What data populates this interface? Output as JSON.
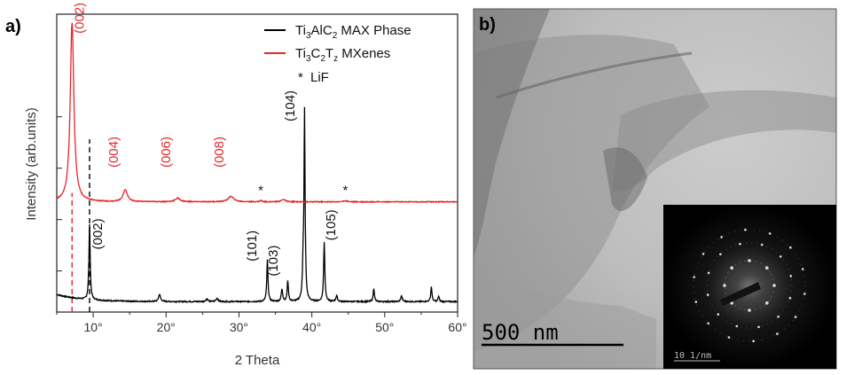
{
  "panel_a_label": "a)",
  "panel_b_label": "b)",
  "chart_data": {
    "type": "line",
    "xlabel": "2 Theta",
    "ylabel": "Intensity (arb.units)",
    "xlim": [
      5,
      60
    ],
    "x_ticks": [
      10,
      20,
      30,
      40,
      50,
      60
    ],
    "x_tick_labels": [
      "10°",
      "20°",
      "30°",
      "40°",
      "50°",
      "60°"
    ],
    "legend": {
      "placement": "top-right",
      "entries": [
        {
          "symbol": "line",
          "color": "#000000",
          "base": "Ti",
          "sub1": "3",
          "mid": "AlC",
          "sub2": "2",
          "rest": " MAX Phase"
        },
        {
          "symbol": "line",
          "color": "#e8262b",
          "base": "Ti",
          "sub1": "3",
          "mid": "C",
          "sub2": "2",
          "mid2": "T",
          "sub3": "z",
          "rest": " MXenes"
        },
        {
          "symbol": "*",
          "color": "#000000",
          "text": "LiF"
        }
      ]
    },
    "series": [
      {
        "name": "Ti3AlC2 MAX Phase",
        "color": "#000000",
        "baseline_frac": 0.035,
        "peaks": [
          {
            "x": 9.5,
            "h": 0.255,
            "w": 0.1
          },
          {
            "x": 19.1,
            "h": 0.025,
            "w": 0.15
          },
          {
            "x": 25.6,
            "h": 0.01,
            "w": 0.15
          },
          {
            "x": 27.0,
            "h": 0.012,
            "w": 0.15
          },
          {
            "x": 33.9,
            "h": 0.14,
            "w": 0.1
          },
          {
            "x": 35.9,
            "h": 0.04,
            "w": 0.12
          },
          {
            "x": 36.7,
            "h": 0.07,
            "w": 0.1
          },
          {
            "x": 38.8,
            "h": 0.105,
            "w": 0.1
          },
          {
            "x": 39.0,
            "h": 0.63,
            "w": 0.09
          },
          {
            "x": 41.7,
            "h": 0.2,
            "w": 0.1
          },
          {
            "x": 43.4,
            "h": 0.02,
            "w": 0.12
          },
          {
            "x": 48.5,
            "h": 0.045,
            "w": 0.1
          },
          {
            "x": 52.3,
            "h": 0.02,
            "w": 0.12
          },
          {
            "x": 56.4,
            "h": 0.05,
            "w": 0.1
          },
          {
            "x": 57.4,
            "h": 0.018,
            "w": 0.1
          }
        ],
        "labels": [
          {
            "text": "(002)",
            "x": 11.2,
            "y": 0.21
          },
          {
            "text": "(101)",
            "x": 32.4,
            "y": 0.17
          },
          {
            "text": "(103)",
            "x": 35.3,
            "y": 0.12
          },
          {
            "text": "(104)",
            "x": 37.6,
            "y": 0.64
          },
          {
            "text": "(105)",
            "x": 43.2,
            "y": 0.24
          }
        ]
      },
      {
        "name": "Ti3C2Tz MXenes",
        "color": "#e8262b",
        "baseline_frac": 0.37,
        "peaks": [
          {
            "x": 7.1,
            "h": 0.6,
            "w": 0.3
          },
          {
            "x": 14.4,
            "h": 0.04,
            "w": 0.35
          },
          {
            "x": 21.6,
            "h": 0.012,
            "w": 0.4
          },
          {
            "x": 28.9,
            "h": 0.018,
            "w": 0.45
          },
          {
            "x": 33.0,
            "h": 0.005,
            "w": 0.15
          },
          {
            "x": 36.1,
            "h": 0.008,
            "w": 0.3
          },
          {
            "x": 44.6,
            "h": 0.004,
            "w": 0.3
          }
        ],
        "labels": [
          {
            "text": "(002)",
            "x": 8.7,
            "y": 0.935
          },
          {
            "text": "(004)",
            "x": 13.4,
            "y": 0.485
          },
          {
            "text": "(006)",
            "x": 20.6,
            "y": 0.485
          },
          {
            "text": "(008)",
            "x": 27.9,
            "y": 0.485
          }
        ]
      }
    ],
    "markers": [
      {
        "type": "dashed-vline",
        "x": 7.1,
        "color": "#e8262b"
      },
      {
        "type": "dashed-vline",
        "x": 9.5,
        "color": "#000000"
      }
    ],
    "annotations": [
      {
        "text": "*",
        "x": 33.0
      },
      {
        "text": "*",
        "x": 44.6
      }
    ]
  },
  "tem_image": {
    "scale_bar_label": "500 nm",
    "inset_label": "10 1/nm"
  }
}
